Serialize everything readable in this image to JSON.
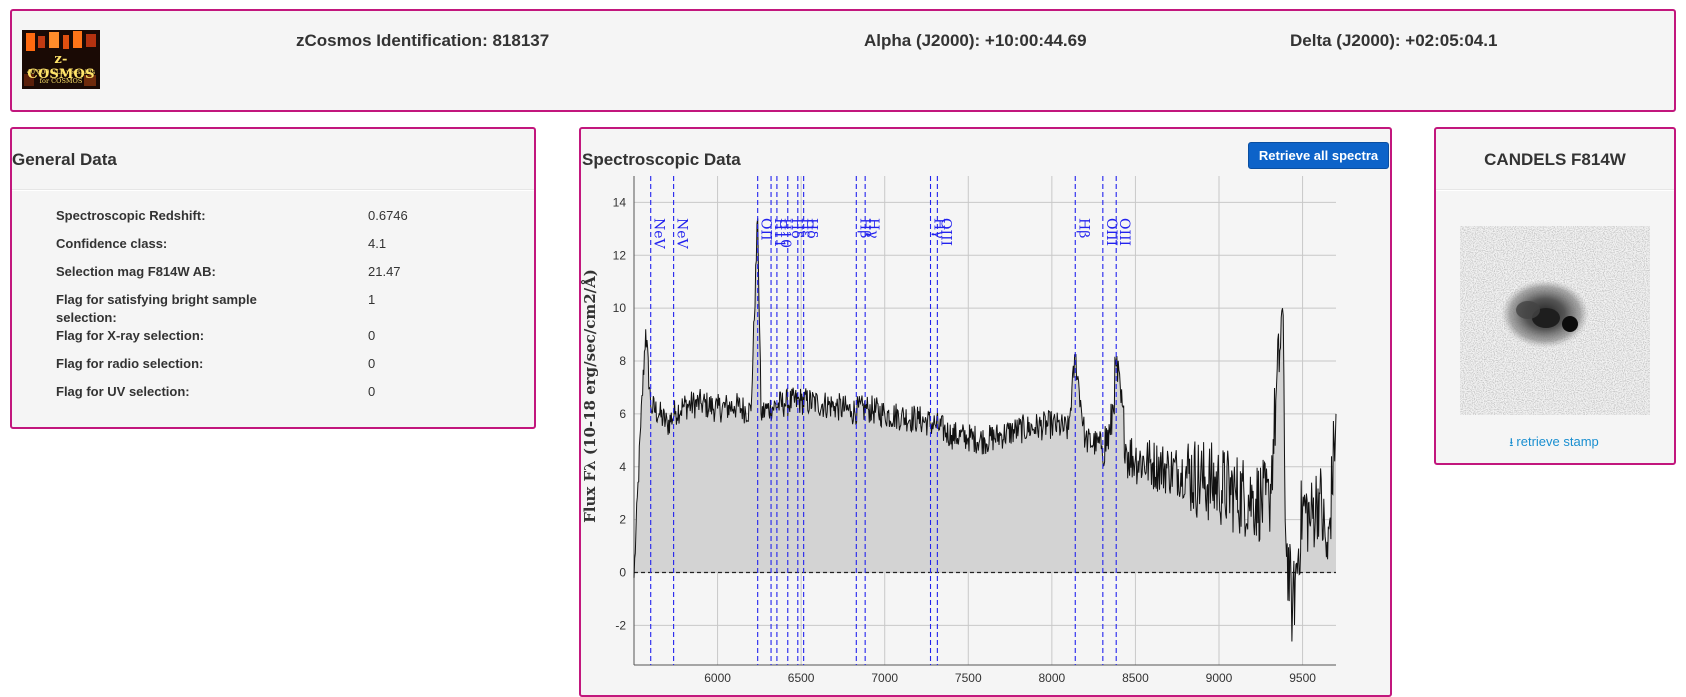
{
  "header": {
    "logo": {
      "title": "z-COSMOS",
      "subtitle_line1": "40'000 VLT redshifts",
      "subtitle_line2": "for COSMOS"
    },
    "identification": "zCosmos Identification: 818137",
    "alpha": "Alpha (J2000): +10:00:44.69",
    "delta": "Delta (J2000): +02:05:04.1"
  },
  "general": {
    "title": "General Data",
    "rows": [
      {
        "label": "Spectroscopic Redshift:",
        "value": "0.6746"
      },
      {
        "label": "Confidence class:",
        "value": "4.1"
      },
      {
        "label": "Selection mag F814W AB:",
        "value": "21.47"
      },
      {
        "label": "Flag for satisfying bright sample selection:",
        "value": "1"
      },
      {
        "label": "Flag for X-ray selection:",
        "value": "0"
      },
      {
        "label": "Flag for radio selection:",
        "value": "0"
      },
      {
        "label": "Flag for UV selection:",
        "value": "0"
      }
    ]
  },
  "spectro": {
    "title": "Spectroscopic Data",
    "retrieve_button": "Retrieve all spectra"
  },
  "candels": {
    "title": "CANDELS F814W",
    "link": "retrieve stamp",
    "link_icon": "download-icon"
  },
  "colors": {
    "border": "#c2177d",
    "button": "#0d63c9",
    "line_markers": "#2222ee",
    "fill": "#d3d3d3",
    "link": "#1a8fd0"
  },
  "chart_data": {
    "type": "area",
    "ylabel": "Flux Fλ (10-18 erg/sec/cm2/Å)",
    "xlabel": "",
    "xlim": [
      5500,
      9700
    ],
    "ylim": [
      -3.5,
      15
    ],
    "xticks": [
      6000,
      6500,
      7000,
      7500,
      8000,
      8500,
      9000,
      9500
    ],
    "yticks": [
      -2,
      0,
      2,
      4,
      6,
      8,
      10,
      12,
      14
    ],
    "grid": true,
    "zero_line": "dashed",
    "emission_lines": [
      {
        "label": "NeV",
        "x": 5600
      },
      {
        "label": "NeV",
        "x": 5737
      },
      {
        "label": "OII",
        "x": 6240
      },
      {
        "label": "H11",
        "x": 6320
      },
      {
        "label": "H10",
        "x": 6355
      },
      {
        "label": "Hδ",
        "x": 6420
      },
      {
        "label": "Hε",
        "x": 6480
      },
      {
        "label": "Hδ",
        "x": 6515
      },
      {
        "label": "Hβ",
        "x": 6830
      },
      {
        "label": "Hγ",
        "x": 6883
      },
      {
        "label": "Hγ",
        "x": 7274
      },
      {
        "label": "OIII",
        "x": 7315
      },
      {
        "label": "Hβ",
        "x": 8140
      },
      {
        "label": "OIII",
        "x": 8305
      },
      {
        "label": "OIII",
        "x": 8385
      }
    ],
    "series": [
      {
        "x": [
          5500,
          5540,
          5570,
          5600,
          5650,
          5700,
          5750,
          5800,
          5900,
          6000,
          6100,
          6200,
          6240,
          6260,
          6300,
          6400,
          6500,
          6600,
          6700,
          6800,
          6900,
          7000,
          7100,
          7200,
          7300,
          7400,
          7500,
          7600,
          7700,
          7800,
          7900,
          8000,
          8100,
          8140,
          8200,
          8300,
          8350,
          8385,
          8450,
          8500,
          8600,
          8700,
          8800,
          8900,
          9000,
          9100,
          9200,
          9300,
          9380,
          9400,
          9440,
          9500,
          9550,
          9600,
          9650,
          9700
        ],
        "y": [
          -0.2,
          5.5,
          9.2,
          6.3,
          6.0,
          5.6,
          6.1,
          6.3,
          6.4,
          6.2,
          6.3,
          6.1,
          13.4,
          6.0,
          6.2,
          6.4,
          6.5,
          6.4,
          6.3,
          6.1,
          6.2,
          6.0,
          5.9,
          5.8,
          5.6,
          5.2,
          5.1,
          5.0,
          5.2,
          5.4,
          5.5,
          5.6,
          5.4,
          8.2,
          5.0,
          4.8,
          5.2,
          7.8,
          4.5,
          4.3,
          4.1,
          3.9,
          3.8,
          3.5,
          3.3,
          3.0,
          2.8,
          2.6,
          10.0,
          1.2,
          -1.5,
          2.5,
          2.0,
          3.0,
          0.5,
          6.0
        ]
      }
    ]
  }
}
